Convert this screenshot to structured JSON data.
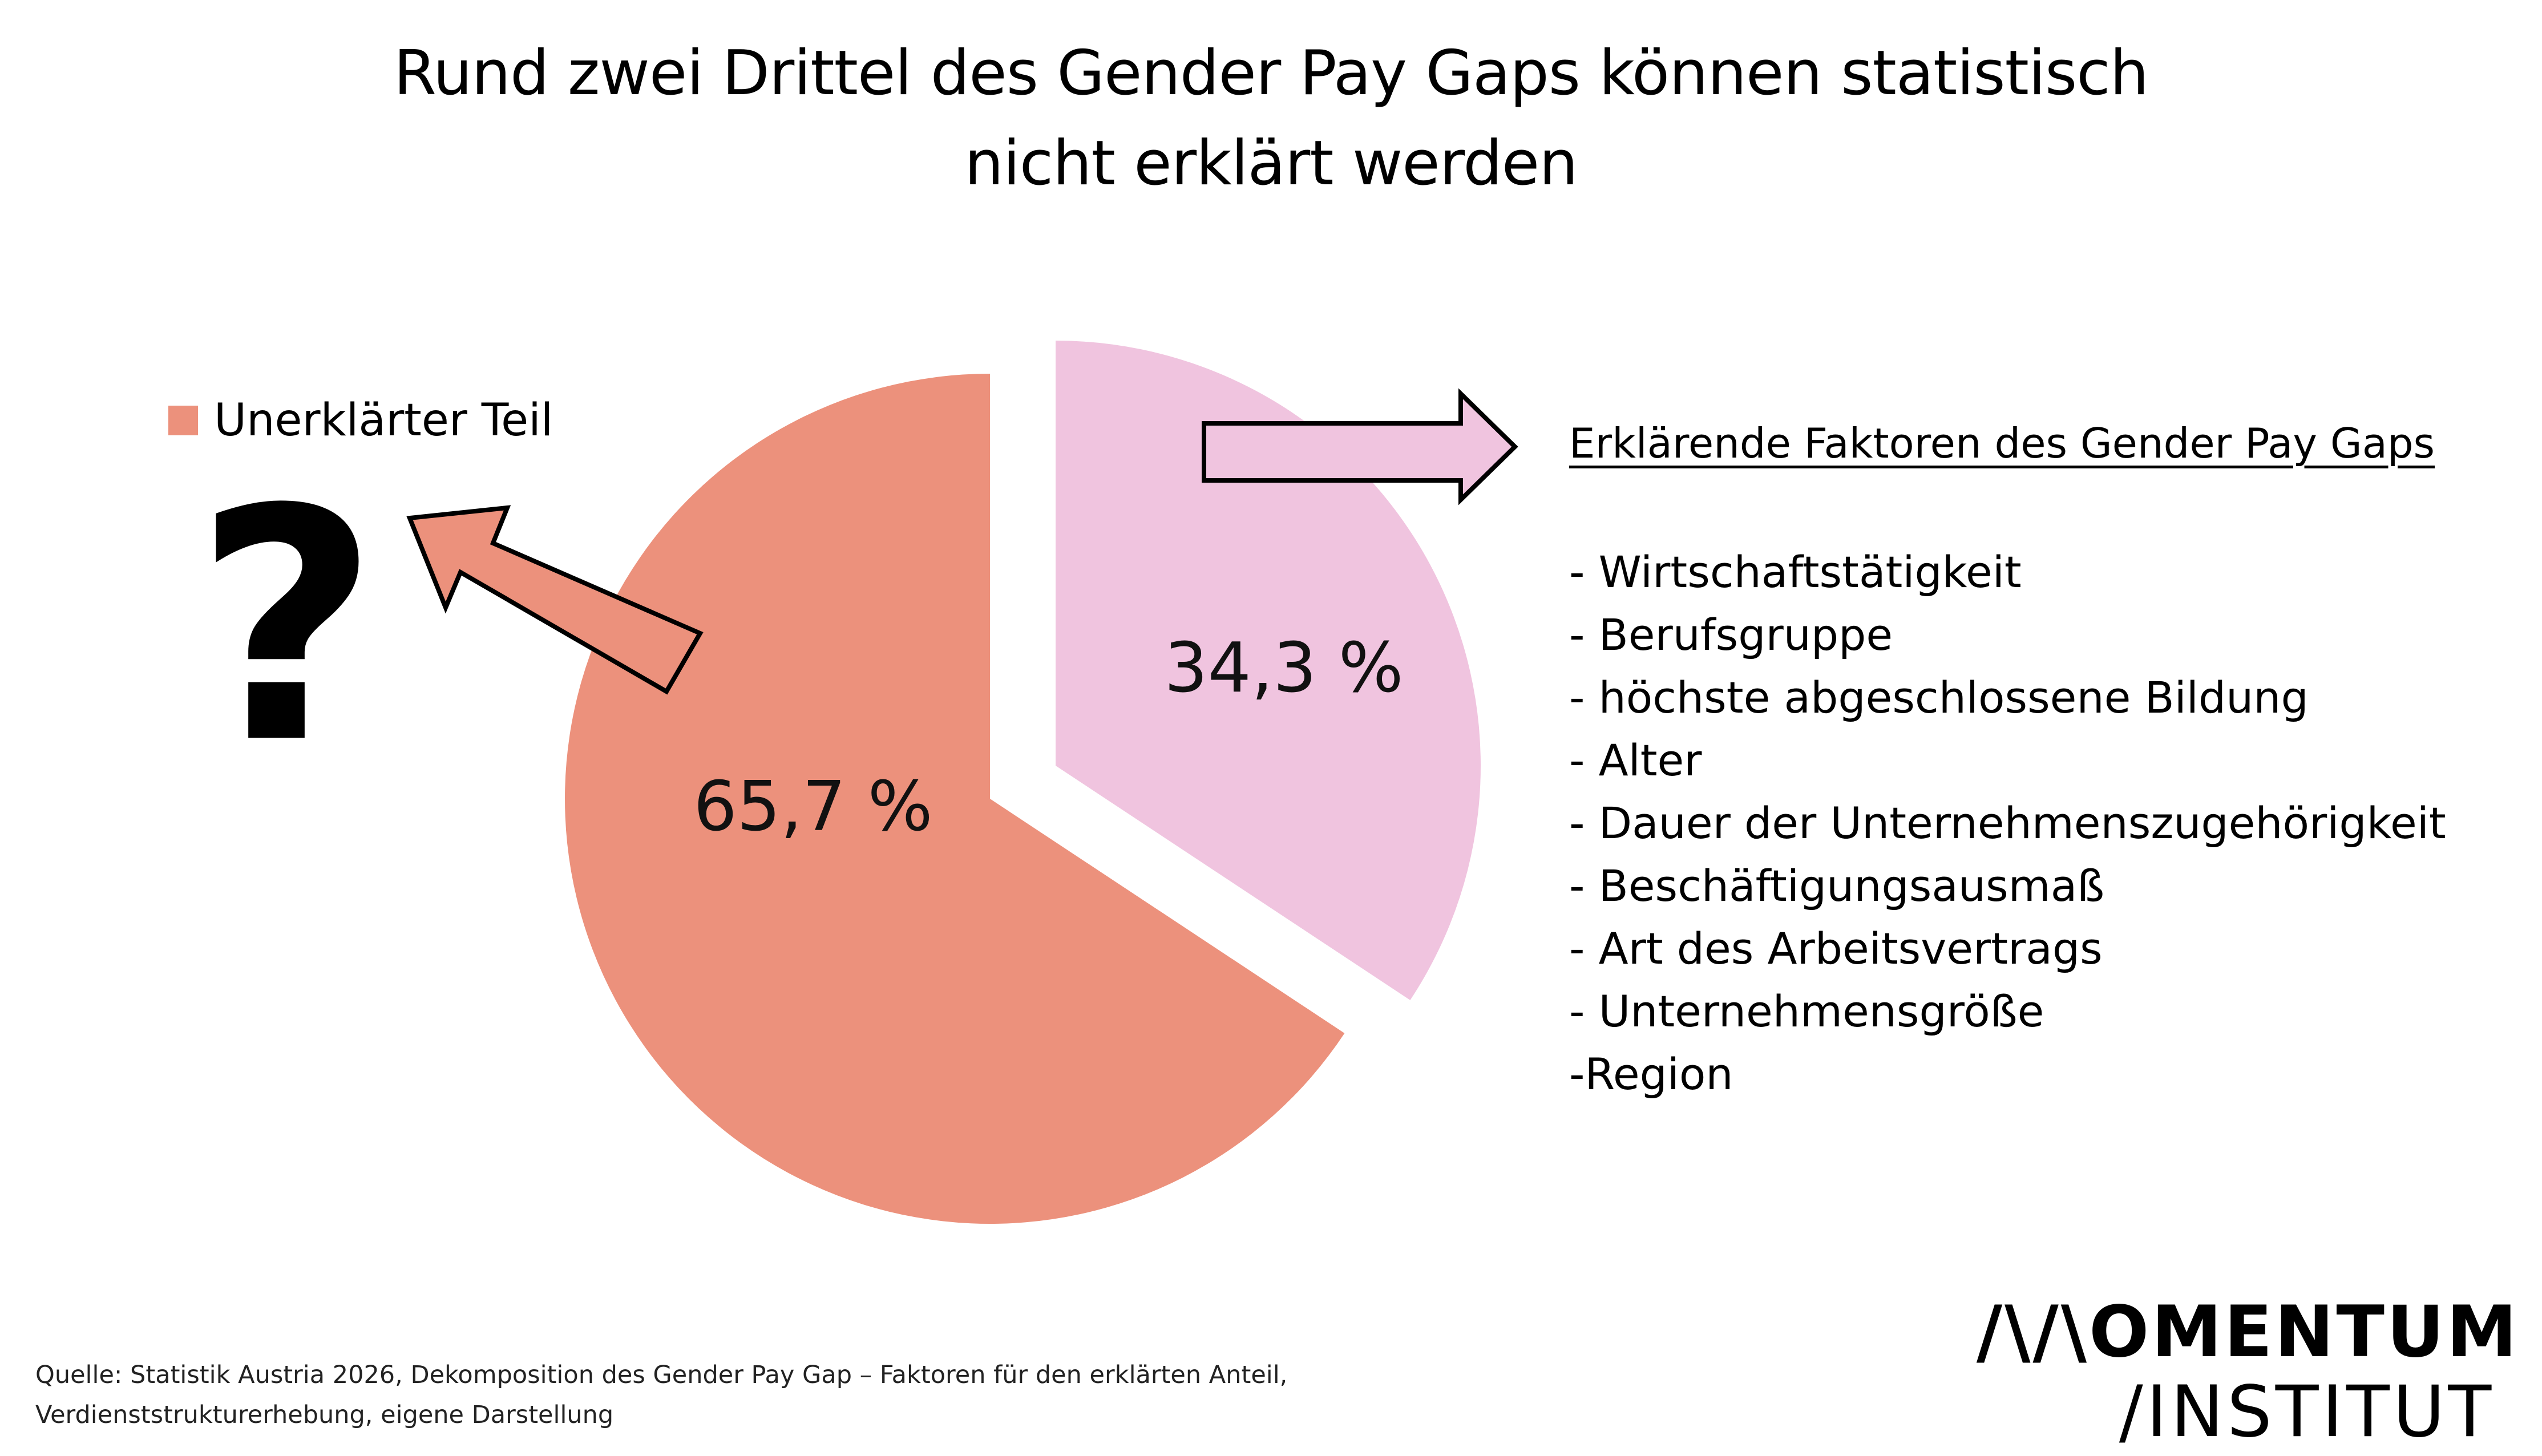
{
  "title": {
    "line1": "Rund zwei Drittel des Gender Pay Gaps können statistisch",
    "line2": "nicht erklärt werden"
  },
  "colors": {
    "unexplained": "#EC917C",
    "explained": "#F0C4DF",
    "arrow_outline": "#000000",
    "background": "#FFFFFF"
  },
  "chart_data": {
    "type": "pie",
    "title": "Rund zwei Drittel des Gender Pay Gaps können statistisch nicht erklärt werden",
    "categories": [
      "Unerklärter Teil",
      "Erklärende Faktoren des Gender Pay Gaps"
    ],
    "values": [
      65.7,
      34.3
    ],
    "value_labels": [
      "65,7 %",
      "34,3 %"
    ],
    "exploded": [
      false,
      true
    ],
    "legend_position": "top-left"
  },
  "legend": {
    "unexplained_label": "Unerklärter Teil",
    "question_mark": "?"
  },
  "factors": {
    "title": "Erklärende Faktoren des Gender Pay Gaps",
    "items": [
      "- Wirtschaftstätigkeit",
      "- Berufsgruppe",
      "- höchste abgeschlossene Bildung",
      "- Alter",
      "- Dauer der Unternehmenszugehörigkeit",
      "- Beschäftigungsausmaß",
      "- Art des Arbeitsvertrags",
      "- Unternehmensgröße",
      "-Region"
    ]
  },
  "source": {
    "line1": "Quelle: Statistik Austria 2026, Dekomposition des Gender Pay Gap – Faktoren für den erklärten Anteil,",
    "line2": "Verdienststrukturerhebung, eigene Darstellung"
  },
  "logo": {
    "line1": "/\\/\\OMENTUM",
    "line2": "/INSTITUT"
  }
}
